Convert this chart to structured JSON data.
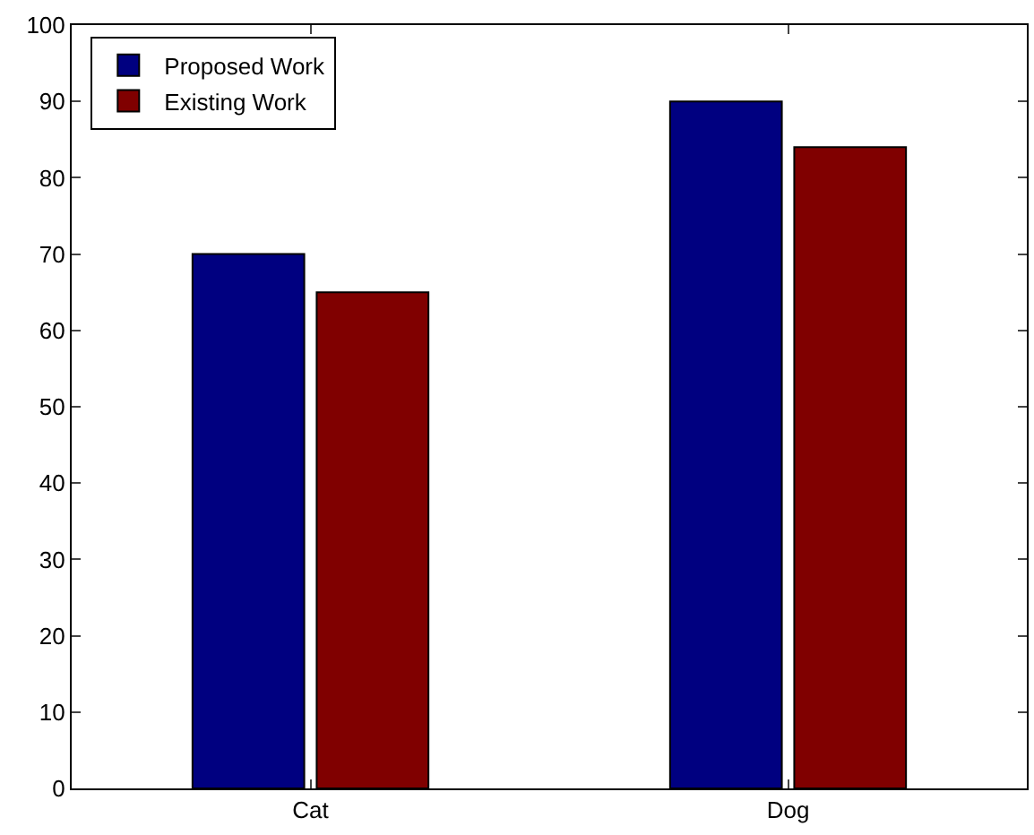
{
  "chart_data": {
    "type": "bar",
    "categories": [
      "Cat",
      "Dog"
    ],
    "series": [
      {
        "name": "Proposed Work",
        "color": "#000080",
        "values": [
          70,
          90
        ]
      },
      {
        "name": "Existing Work",
        "color": "#800000",
        "values": [
          65,
          84
        ]
      }
    ],
    "ylim": [
      0,
      100
    ],
    "yticks": [
      0,
      10,
      20,
      30,
      40,
      50,
      60,
      70,
      80,
      90,
      100
    ],
    "legend": "top left"
  }
}
